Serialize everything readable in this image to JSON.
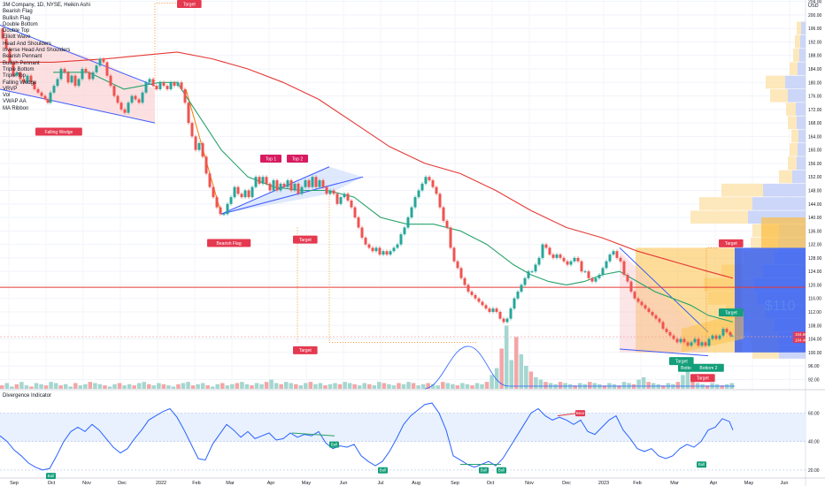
{
  "chart_data": {
    "type": "line",
    "title": "3M Company, 1D, NYSE, Heikin Ashi",
    "currency": "USD",
    "indicator_list": [
      "Bearish Flag",
      "Bullish Flag",
      "Double Bottom",
      "Double Top",
      "Elliott Wave",
      "Head And Shoulders",
      "Inverse Head And Shoulders",
      "Bearish Pennant",
      "Bullish Pennant",
      "Triple Bottom",
      "Triple Top",
      "Falling Wedge",
      "VRVP",
      "Vol",
      "VWAP AA",
      "MA Ribbon"
    ],
    "x_labels": [
      "Sep",
      "Oct",
      "Nov",
      "Dec",
      "2022",
      "Feb",
      "Mar",
      "Apr",
      "May",
      "Jun",
      "Jul",
      "Aug",
      "Sep",
      "Oct",
      "Nov",
      "Dec",
      "2023",
      "Feb",
      "Mar",
      "Apr",
      "May",
      "Jun"
    ],
    "y_ticks": [
      92,
      96,
      100,
      104,
      108,
      112,
      116,
      120,
      124,
      128,
      132,
      136,
      140,
      144,
      148,
      152,
      156,
      160,
      164,
      168,
      172,
      176,
      180,
      184,
      188,
      192,
      196,
      200,
      204
    ],
    "y_tick_labels": [
      "92.00",
      "96.00",
      "100.00",
      "104.00",
      "108.00",
      "112.00",
      "116.00",
      "120.00",
      "124.00",
      "128.00",
      "132.00",
      "136.00",
      "140.00",
      "144.00",
      "148.00",
      "152.00",
      "156.00",
      "160.00",
      "164.00",
      "168.00",
      "172.00",
      "176.00",
      "180.00",
      "184.00",
      "188.00",
      "192.00",
      "196.00",
      "200.00",
      "204.00"
    ],
    "ylim": [
      90,
      206
    ],
    "price_path": [
      [
        0,
        196
      ],
      [
        4,
        193
      ],
      [
        8,
        190
      ],
      [
        12,
        186
      ],
      [
        16,
        182
      ],
      [
        20,
        183
      ],
      [
        24,
        181
      ],
      [
        28,
        180
      ],
      [
        32,
        182
      ],
      [
        36,
        180
      ],
      [
        40,
        178
      ],
      [
        44,
        177
      ],
      [
        48,
        176
      ],
      [
        52,
        175
      ],
      [
        55,
        174
      ],
      [
        58,
        177
      ],
      [
        62,
        179
      ],
      [
        66,
        181
      ],
      [
        70,
        184
      ],
      [
        74,
        183
      ],
      [
        78,
        180
      ],
      [
        82,
        182
      ],
      [
        86,
        179
      ],
      [
        90,
        181
      ],
      [
        94,
        184
      ],
      [
        98,
        183
      ],
      [
        102,
        181
      ],
      [
        106,
        183
      ],
      [
        110,
        185
      ],
      [
        114,
        187
      ],
      [
        118,
        186
      ],
      [
        122,
        182
      ],
      [
        126,
        179
      ],
      [
        130,
        176
      ],
      [
        134,
        174
      ],
      [
        138,
        172
      ],
      [
        142,
        171
      ],
      [
        146,
        174
      ],
      [
        150,
        176
      ],
      [
        154,
        175
      ],
      [
        158,
        174
      ],
      [
        162,
        177
      ],
      [
        166,
        180
      ],
      [
        170,
        181
      ],
      [
        174,
        179
      ],
      [
        178,
        178
      ],
      [
        182,
        180
      ],
      [
        186,
        179
      ],
      [
        190,
        178
      ],
      [
        194,
        180
      ],
      [
        198,
        179
      ],
      [
        202,
        180
      ],
      [
        206,
        178
      ],
      [
        210,
        174
      ],
      [
        214,
        168
      ],
      [
        218,
        164
      ],
      [
        222,
        160
      ],
      [
        226,
        162
      ],
      [
        230,
        158
      ],
      [
        234,
        153
      ],
      [
        238,
        149
      ],
      [
        242,
        146
      ],
      [
        246,
        143
      ],
      [
        250,
        141
      ],
      [
        254,
        141
      ],
      [
        258,
        144
      ],
      [
        262,
        146
      ],
      [
        266,
        149
      ],
      [
        270,
        147
      ],
      [
        274,
        146
      ],
      [
        278,
        148
      ],
      [
        282,
        146
      ],
      [
        286,
        149
      ],
      [
        290,
        152
      ],
      [
        294,
        150
      ],
      [
        298,
        152
      ],
      [
        302,
        150
      ],
      [
        306,
        148
      ],
      [
        310,
        151
      ],
      [
        314,
        148
      ],
      [
        318,
        150
      ],
      [
        322,
        149
      ],
      [
        326,
        151
      ],
      [
        330,
        148
      ],
      [
        334,
        150
      ],
      [
        338,
        147
      ],
      [
        342,
        149
      ],
      [
        346,
        151
      ],
      [
        350,
        149
      ],
      [
        354,
        152
      ],
      [
        358,
        149
      ],
      [
        362,
        151
      ],
      [
        366,
        149
      ],
      [
        370,
        147
      ],
      [
        374,
        148
      ],
      [
        378,
        147
      ],
      [
        382,
        144
      ],
      [
        386,
        146
      ],
      [
        390,
        147
      ],
      [
        394,
        145
      ],
      [
        398,
        143
      ],
      [
        402,
        140
      ],
      [
        406,
        137
      ],
      [
        410,
        134
      ],
      [
        414,
        132
      ],
      [
        418,
        131
      ],
      [
        422,
        130
      ],
      [
        426,
        131
      ],
      [
        430,
        129
      ],
      [
        434,
        130
      ],
      [
        438,
        129
      ],
      [
        442,
        130
      ],
      [
        446,
        131
      ],
      [
        450,
        132
      ],
      [
        454,
        135
      ],
      [
        458,
        137
      ],
      [
        462,
        140
      ],
      [
        466,
        143
      ],
      [
        470,
        146
      ],
      [
        474,
        148
      ],
      [
        478,
        150
      ],
      [
        482,
        152
      ],
      [
        486,
        151
      ],
      [
        490,
        149
      ],
      [
        494,
        147
      ],
      [
        498,
        143
      ],
      [
        502,
        139
      ],
      [
        506,
        137
      ],
      [
        510,
        131
      ],
      [
        514,
        127
      ],
      [
        518,
        125
      ],
      [
        522,
        122
      ],
      [
        526,
        120
      ],
      [
        530,
        118
      ],
      [
        534,
        117
      ],
      [
        538,
        116
      ],
      [
        542,
        115
      ],
      [
        546,
        114
      ],
      [
        550,
        113
      ],
      [
        554,
        112
      ],
      [
        558,
        113
      ],
      [
        562,
        112
      ],
      [
        566,
        110
      ],
      [
        570,
        109
      ],
      [
        574,
        110
      ],
      [
        578,
        113
      ],
      [
        582,
        116
      ],
      [
        586,
        118
      ],
      [
        590,
        120
      ],
      [
        594,
        122
      ],
      [
        598,
        124
      ],
      [
        602,
        124
      ],
      [
        606,
        126
      ],
      [
        610,
        128
      ],
      [
        614,
        132
      ],
      [
        618,
        131
      ],
      [
        622,
        129
      ],
      [
        626,
        128
      ],
      [
        630,
        129
      ],
      [
        634,
        128
      ],
      [
        638,
        127
      ],
      [
        642,
        126
      ],
      [
        646,
        127
      ],
      [
        650,
        128
      ],
      [
        654,
        127
      ],
      [
        658,
        124
      ],
      [
        662,
        124
      ],
      [
        666,
        122
      ],
      [
        670,
        121
      ],
      [
        674,
        122
      ],
      [
        678,
        123
      ],
      [
        682,
        125
      ],
      [
        686,
        127
      ],
      [
        690,
        129
      ],
      [
        694,
        130
      ],
      [
        698,
        128
      ],
      [
        702,
        127
      ],
      [
        706,
        123
      ],
      [
        710,
        121
      ],
      [
        714,
        118
      ],
      [
        718,
        116
      ],
      [
        722,
        115
      ],
      [
        726,
        114
      ],
      [
        730,
        113
      ],
      [
        734,
        112
      ],
      [
        738,
        111
      ],
      [
        742,
        110
      ],
      [
        746,
        109
      ],
      [
        750,
        107
      ],
      [
        754,
        106
      ],
      [
        758,
        105
      ],
      [
        762,
        104
      ],
      [
        766,
        103
      ],
      [
        770,
        104
      ],
      [
        774,
        103
      ],
      [
        778,
        102
      ],
      [
        782,
        103
      ],
      [
        786,
        104
      ],
      [
        790,
        102
      ],
      [
        794,
        103
      ],
      [
        798,
        102
      ],
      [
        802,
        104
      ],
      [
        806,
        105
      ],
      [
        810,
        104
      ],
      [
        814,
        105
      ],
      [
        818,
        107
      ],
      [
        822,
        106
      ],
      [
        826,
        105
      ],
      [
        828,
        105
      ]
    ],
    "ma_fast": [
      [
        60,
        183
      ],
      [
        100,
        183
      ],
      [
        140,
        178
      ],
      [
        180,
        180
      ],
      [
        200,
        180
      ],
      [
        220,
        172
      ],
      [
        250,
        160
      ],
      [
        280,
        152
      ],
      [
        310,
        149
      ],
      [
        340,
        148
      ],
      [
        370,
        148
      ],
      [
        400,
        146
      ],
      [
        430,
        140
      ],
      [
        460,
        138
      ],
      [
        490,
        138
      ],
      [
        520,
        136
      ],
      [
        550,
        132
      ],
      [
        580,
        126
      ],
      [
        600,
        123
      ],
      [
        620,
        121
      ],
      [
        640,
        120
      ],
      [
        660,
        121
      ],
      [
        680,
        123
      ],
      [
        700,
        124
      ],
      [
        720,
        121
      ],
      [
        740,
        118
      ],
      [
        760,
        116
      ],
      [
        780,
        114
      ],
      [
        800,
        111
      ],
      [
        828,
        109
      ]
    ],
    "ma_slow": [
      [
        0,
        186
      ],
      [
        60,
        186
      ],
      [
        120,
        187
      ],
      [
        160,
        188
      ],
      [
        200,
        189
      ],
      [
        240,
        187
      ],
      [
        280,
        184
      ],
      [
        320,
        180
      ],
      [
        360,
        175
      ],
      [
        400,
        168
      ],
      [
        440,
        161
      ],
      [
        480,
        156
      ],
      [
        520,
        153
      ],
      [
        560,
        148
      ],
      [
        600,
        142
      ],
      [
        640,
        137
      ],
      [
        680,
        134
      ],
      [
        720,
        130
      ],
      [
        760,
        127
      ],
      [
        800,
        124
      ],
      [
        828,
        122
      ]
    ],
    "horizontal_level": 119.3,
    "current_price": 104.66,
    "price_labels": [
      "104.66",
      "104.46"
    ],
    "big_label": "$110",
    "annotations": [
      "Target",
      "Target",
      "Target",
      "Target",
      "Target",
      "Target",
      "Target",
      "Top 1",
      "Top 2",
      "Falling Wedge",
      "Bearish Flag",
      "Bottom 2",
      "Botto",
      "Bull",
      "Bull",
      "Bull",
      "Bull",
      "Bull",
      "Bear"
    ],
    "volume_bars": [
      3,
      5,
      2,
      4,
      6,
      3,
      2,
      5,
      4,
      3,
      6,
      5,
      3,
      4,
      2,
      5,
      3,
      4,
      6,
      5,
      4,
      3,
      2,
      4,
      5,
      3,
      4,
      3,
      5,
      6,
      4,
      3,
      5,
      4,
      3,
      2,
      4,
      5,
      6,
      3,
      4,
      5,
      3,
      2,
      4,
      5,
      3,
      4,
      5,
      6,
      4,
      3,
      5,
      4,
      6,
      8,
      5,
      4,
      6,
      5,
      4,
      3,
      5,
      6,
      4,
      5,
      3,
      4,
      5,
      4,
      6,
      5,
      4,
      3,
      5,
      4,
      3,
      6,
      5,
      4,
      3,
      5,
      4,
      6,
      5,
      3,
      4,
      5,
      4,
      3,
      6,
      5,
      4,
      3,
      5,
      4,
      3,
      5,
      4,
      6,
      12,
      18,
      35,
      55,
      25,
      45,
      30,
      20,
      15,
      10,
      8,
      6,
      5,
      4,
      6,
      5,
      4,
      3,
      5,
      4,
      6,
      5,
      4,
      3,
      5,
      4,
      3,
      6,
      5,
      4,
      8,
      10,
      6,
      5,
      4,
      3,
      5,
      4,
      6,
      12,
      15,
      8,
      5,
      4,
      3,
      5,
      4,
      3,
      4,
      5
    ],
    "oscillator": {
      "name": "Divergence Indicator",
      "y_ticks": [
        20,
        40,
        60
      ],
      "y_tick_labels": [
        "20.00",
        "40.00",
        "60.00"
      ],
      "ylim": [
        15,
        72
      ],
      "series": [
        [
          0,
          44
        ],
        [
          8,
          40
        ],
        [
          16,
          34
        ],
        [
          24,
          30
        ],
        [
          32,
          25
        ],
        [
          40,
          22
        ],
        [
          48,
          20
        ],
        [
          56,
          21
        ],
        [
          64,
          30
        ],
        [
          72,
          40
        ],
        [
          80,
          47
        ],
        [
          88,
          50
        ],
        [
          96,
          47
        ],
        [
          104,
          52
        ],
        [
          112,
          48
        ],
        [
          120,
          42
        ],
        [
          128,
          36
        ],
        [
          136,
          32
        ],
        [
          144,
          35
        ],
        [
          152,
          42
        ],
        [
          160,
          48
        ],
        [
          168,
          55
        ],
        [
          176,
          58
        ],
        [
          184,
          61
        ],
        [
          192,
          63
        ],
        [
          200,
          57
        ],
        [
          208,
          48
        ],
        [
          216,
          38
        ],
        [
          224,
          28
        ],
        [
          232,
          27
        ],
        [
          240,
          38
        ],
        [
          248,
          45
        ],
        [
          256,
          52
        ],
        [
          264,
          48
        ],
        [
          272,
          43
        ],
        [
          280,
          47
        ],
        [
          288,
          42
        ],
        [
          296,
          44
        ],
        [
          304,
          46
        ],
        [
          312,
          41
        ],
        [
          320,
          42
        ],
        [
          328,
          46
        ],
        [
          336,
          43
        ],
        [
          344,
          45
        ],
        [
          352,
          44
        ],
        [
          360,
          47
        ],
        [
          368,
          39
        ],
        [
          376,
          35
        ],
        [
          384,
          37
        ],
        [
          392,
          36
        ],
        [
          400,
          38
        ],
        [
          408,
          30
        ],
        [
          416,
          26
        ],
        [
          424,
          23
        ],
        [
          432,
          26
        ],
        [
          440,
          33
        ],
        [
          448,
          42
        ],
        [
          456,
          52
        ],
        [
          464,
          58
        ],
        [
          472,
          62
        ],
        [
          480,
          66
        ],
        [
          488,
          67
        ],
        [
          496,
          60
        ],
        [
          504,
          48
        ],
        [
          512,
          30
        ],
        [
          520,
          27
        ],
        [
          528,
          24
        ],
        [
          536,
          22
        ],
        [
          544,
          24
        ],
        [
          552,
          26
        ],
        [
          560,
          23
        ],
        [
          568,
          28
        ],
        [
          576,
          36
        ],
        [
          584,
          44
        ],
        [
          592,
          52
        ],
        [
          600,
          60
        ],
        [
          608,
          63
        ],
        [
          616,
          58
        ],
        [
          624,
          55
        ],
        [
          632,
          57
        ],
        [
          640,
          55
        ],
        [
          648,
          52
        ],
        [
          656,
          55
        ],
        [
          664,
          47
        ],
        [
          672,
          45
        ],
        [
          680,
          50
        ],
        [
          688,
          55
        ],
        [
          696,
          58
        ],
        [
          704,
          48
        ],
        [
          712,
          42
        ],
        [
          720,
          35
        ],
        [
          728,
          33
        ],
        [
          736,
          35
        ],
        [
          744,
          30
        ],
        [
          752,
          28
        ],
        [
          760,
          30
        ],
        [
          768,
          35
        ],
        [
          776,
          38
        ],
        [
          784,
          36
        ],
        [
          792,
          40
        ],
        [
          800,
          48
        ],
        [
          808,
          50
        ],
        [
          816,
          56
        ],
        [
          824,
          54
        ],
        [
          828,
          48
        ]
      ]
    }
  }
}
